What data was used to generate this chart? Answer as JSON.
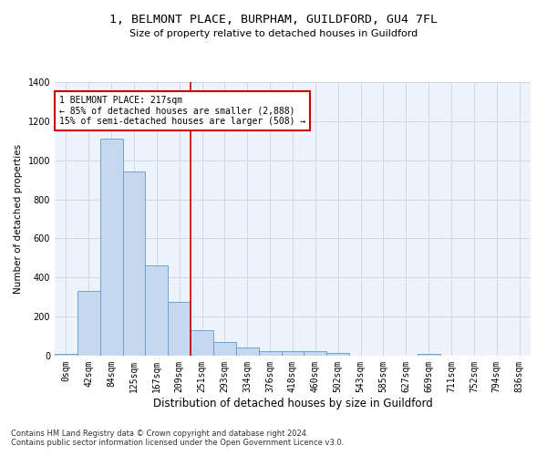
{
  "title_line1": "1, BELMONT PLACE, BURPHAM, GUILDFORD, GU4 7FL",
  "title_line2": "Size of property relative to detached houses in Guildford",
  "xlabel": "Distribution of detached houses by size in Guildford",
  "ylabel": "Number of detached properties",
  "footnote": "Contains HM Land Registry data © Crown copyright and database right 2024.\nContains public sector information licensed under the Open Government Licence v3.0.",
  "bar_labels": [
    "0sqm",
    "42sqm",
    "84sqm",
    "125sqm",
    "167sqm",
    "209sqm",
    "251sqm",
    "293sqm",
    "334sqm",
    "376sqm",
    "418sqm",
    "460sqm",
    "502sqm",
    "543sqm",
    "585sqm",
    "627sqm",
    "669sqm",
    "711sqm",
    "752sqm",
    "794sqm",
    "836sqm"
  ],
  "bar_values": [
    10,
    330,
    1110,
    945,
    460,
    275,
    130,
    70,
    40,
    25,
    25,
    25,
    15,
    0,
    0,
    0,
    10,
    0,
    0,
    0,
    0
  ],
  "bar_color": "#c5d8f0",
  "bar_edge_color": "#5b9bd5",
  "grid_color": "#d0d8e8",
  "background_color": "#eef2fa",
  "vline_x": 5.5,
  "vline_color": "#cc0000",
  "annotation_text": "1 BELMONT PLACE: 217sqm\n← 85% of detached houses are smaller (2,888)\n15% of semi-detached houses are larger (508) →",
  "annotation_box_color": "#ffffff",
  "annotation_box_edge_color": "#cc0000",
  "ylim": [
    0,
    1400
  ],
  "yticks": [
    0,
    200,
    400,
    600,
    800,
    1000,
    1200,
    1400
  ],
  "title1_fontsize": 9.5,
  "title2_fontsize": 8,
  "xlabel_fontsize": 8.5,
  "ylabel_fontsize": 7.5,
  "tick_fontsize": 7,
  "annot_fontsize": 7,
  "footnote_fontsize": 6
}
